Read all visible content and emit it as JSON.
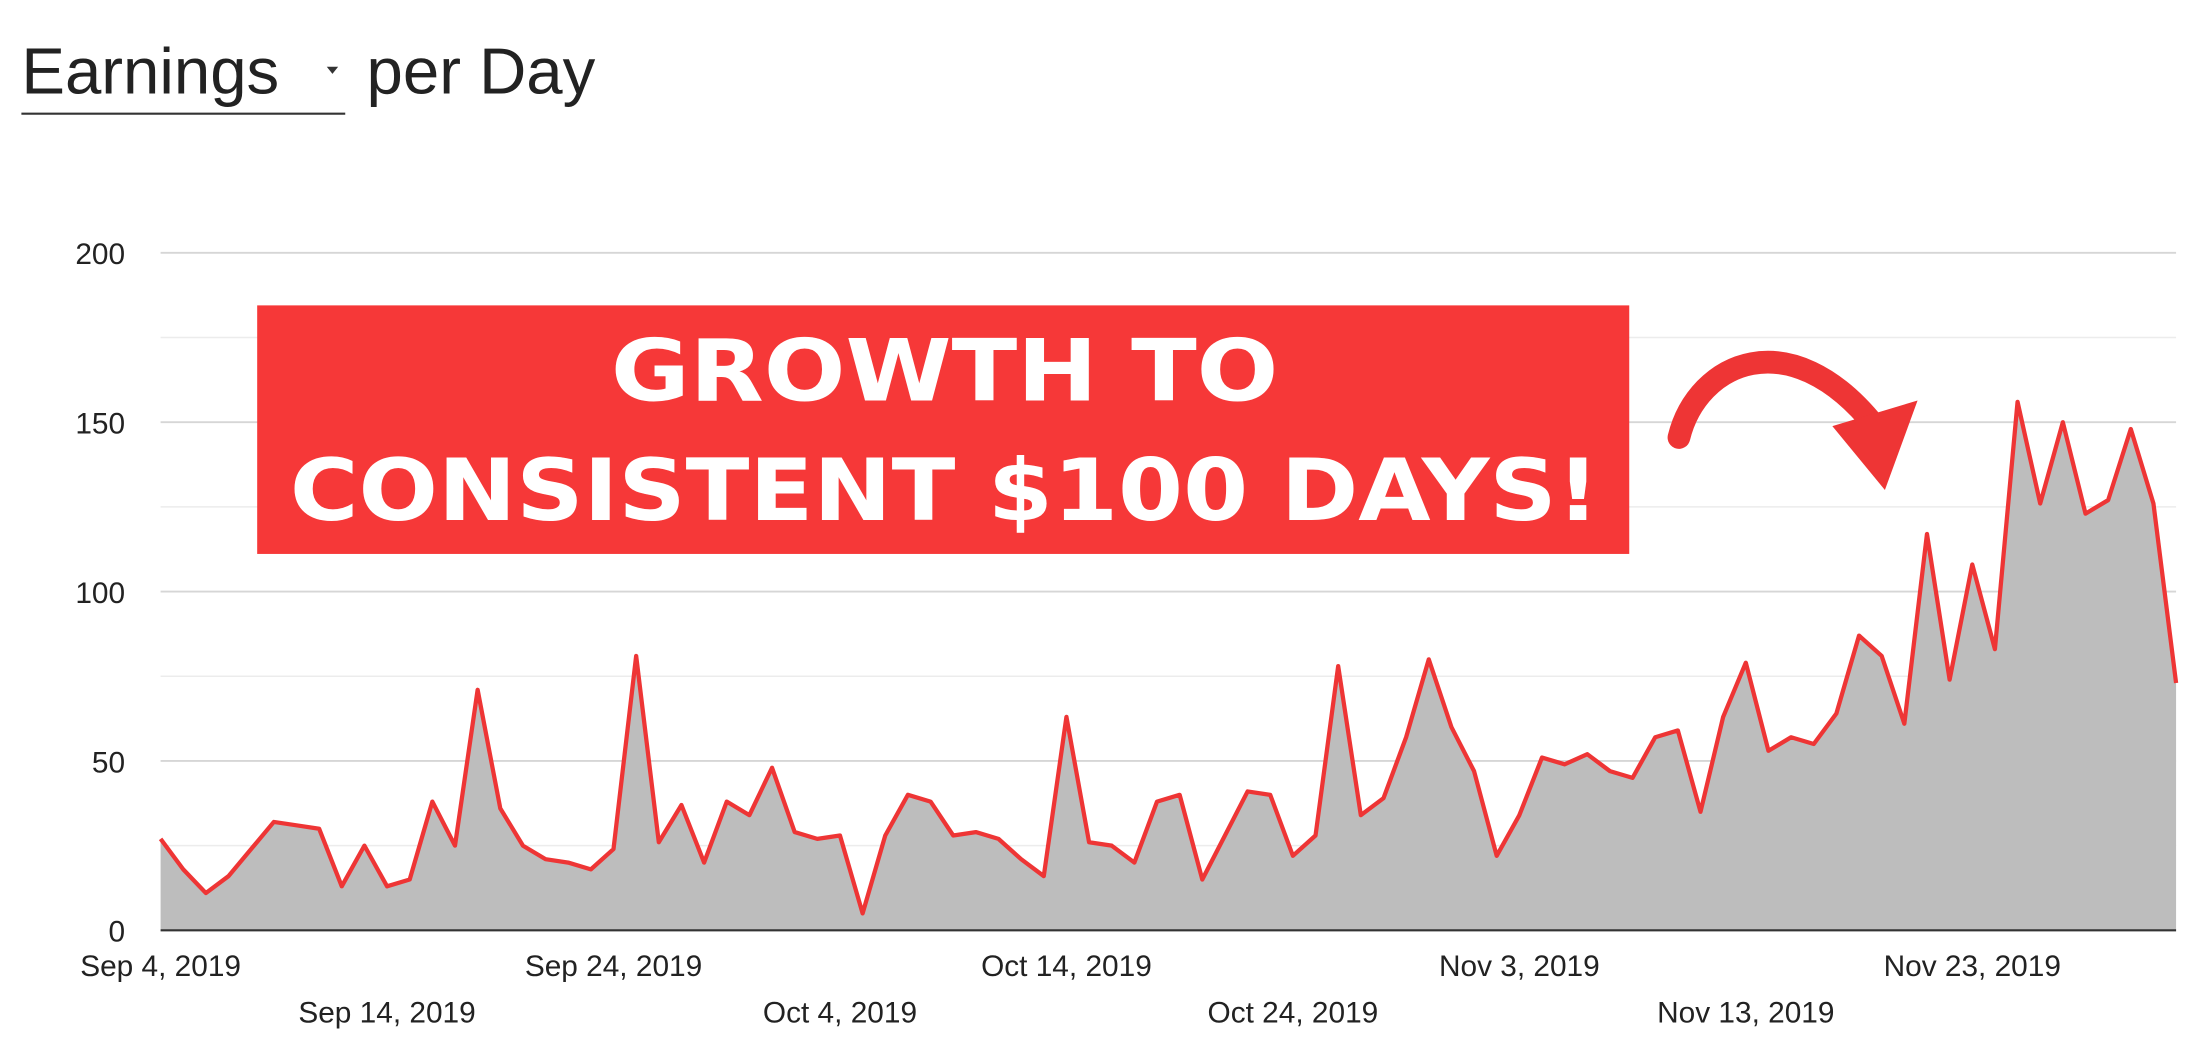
{
  "chart_data": {
    "type": "area",
    "title_metric": "Earnings",
    "title_rest": "per Day",
    "annotation": [
      "GROWTH TO",
      "CONSISTENT $100 DAYS!"
    ],
    "x": [
      "2019-09-04",
      "2019-09-05",
      "2019-09-06",
      "2019-09-07",
      "2019-09-08",
      "2019-09-09",
      "2019-09-10",
      "2019-09-11",
      "2019-09-12",
      "2019-09-13",
      "2019-09-14",
      "2019-09-15",
      "2019-09-16",
      "2019-09-17",
      "2019-09-18",
      "2019-09-19",
      "2019-09-20",
      "2019-09-21",
      "2019-09-22",
      "2019-09-23",
      "2019-09-24",
      "2019-09-25",
      "2019-09-26",
      "2019-09-27",
      "2019-09-28",
      "2019-09-29",
      "2019-09-30",
      "2019-10-01",
      "2019-10-02",
      "2019-10-03",
      "2019-10-04",
      "2019-10-05",
      "2019-10-06",
      "2019-10-07",
      "2019-10-08",
      "2019-10-09",
      "2019-10-10",
      "2019-10-11",
      "2019-10-12",
      "2019-10-13",
      "2019-10-14",
      "2019-10-15",
      "2019-10-16",
      "2019-10-17",
      "2019-10-18",
      "2019-10-19",
      "2019-10-20",
      "2019-10-21",
      "2019-10-22",
      "2019-10-23",
      "2019-10-24",
      "2019-10-25",
      "2019-10-26",
      "2019-10-27",
      "2019-10-28",
      "2019-10-29",
      "2019-10-30",
      "2019-10-31",
      "2019-11-01",
      "2019-11-02",
      "2019-11-03",
      "2019-11-04",
      "2019-11-05",
      "2019-11-06",
      "2019-11-07",
      "2019-11-08",
      "2019-11-09",
      "2019-11-10",
      "2019-11-11",
      "2019-11-12",
      "2019-11-13",
      "2019-11-14",
      "2019-11-15",
      "2019-11-16",
      "2019-11-17",
      "2019-11-18",
      "2019-11-19",
      "2019-11-20",
      "2019-11-21",
      "2019-11-22",
      "2019-11-23",
      "2019-11-24",
      "2019-11-25",
      "2019-11-26",
      "2019-11-27",
      "2019-11-28",
      "2019-11-29",
      "2019-11-30",
      "2019-12-01",
      "2019-12-02"
    ],
    "series": [
      {
        "color": "#ee3535",
        "fill": "#bdbdbd",
        "values": [
          27,
          18,
          11,
          16,
          24,
          32,
          31,
          30,
          13,
          25,
          13,
          15,
          38,
          25,
          71,
          36,
          25,
          21,
          20,
          18,
          24,
          81,
          26,
          37,
          20,
          38,
          34,
          48,
          29,
          27,
          28,
          5,
          28,
          40,
          38,
          28,
          29,
          27,
          21,
          16,
          63,
          26,
          25,
          20,
          38,
          40,
          15,
          28,
          41,
          40,
          22,
          28,
          78,
          34,
          39,
          57,
          80,
          60,
          47,
          22,
          34,
          51,
          49,
          52,
          47,
          45,
          57,
          59,
          35,
          63,
          79,
          53,
          57,
          55,
          64,
          87,
          81,
          61,
          117,
          74,
          108,
          83,
          156,
          126,
          150,
          123,
          127,
          148,
          126,
          73
        ]
      }
    ],
    "xlim": [
      "2019-09-04",
      "2019-12-02"
    ],
    "xticks": [
      {
        "value": "2019-09-04",
        "label": "Sep 4, 2019"
      },
      {
        "value": "2019-09-14",
        "label": "Sep 14, 2019"
      },
      {
        "value": "2019-09-24",
        "label": "Sep 24, 2019"
      },
      {
        "value": "2019-10-04",
        "label": "Oct 4, 2019"
      },
      {
        "value": "2019-10-14",
        "label": "Oct 14, 2019"
      },
      {
        "value": "2019-10-24",
        "label": "Oct 24, 2019"
      },
      {
        "value": "2019-11-03",
        "label": "Nov 3, 2019"
      },
      {
        "value": "2019-11-13",
        "label": "Nov 13, 2019"
      },
      {
        "value": "2019-11-23",
        "label": "Nov 23, 2019"
      }
    ],
    "ylim": [
      0,
      200
    ],
    "yticks": [
      0,
      50,
      100,
      150,
      200
    ],
    "minor_yticks": [
      25,
      75,
      125,
      175
    ],
    "grid": true
  }
}
